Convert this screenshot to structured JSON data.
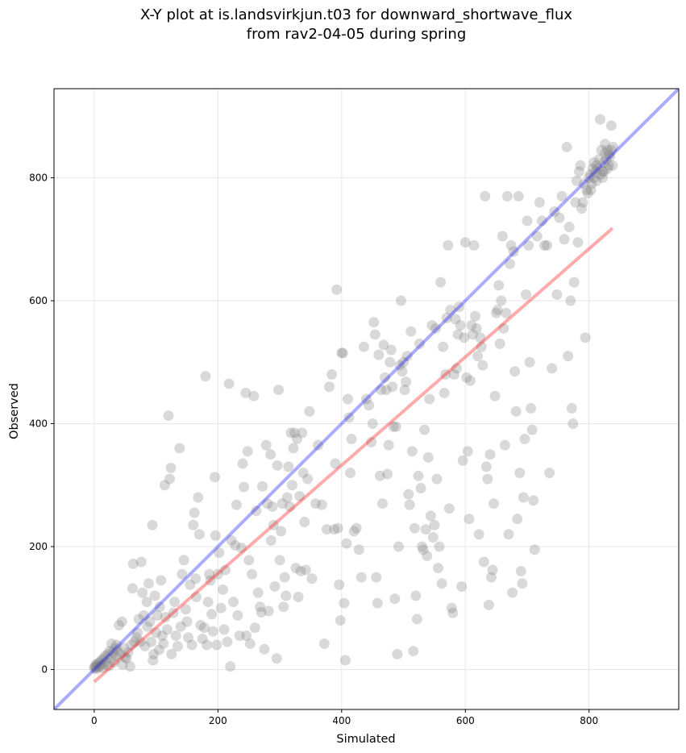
{
  "chart_data": {
    "type": "scatter",
    "title_line1": "X-Y plot at is.landsvirkjun.t03 for downward_shortwave_flux",
    "title_line2": "from rav2-04-05 during spring",
    "xlabel": "Simulated",
    "ylabel": "Observed",
    "xlim": [
      -65,
      945
    ],
    "ylim": [
      -65,
      945
    ],
    "xticks": [
      0,
      200,
      400,
      600,
      800
    ],
    "yticks": [
      0,
      200,
      400,
      600,
      800
    ],
    "grid": true,
    "point_color": "#808080",
    "identity_line_color": "#0000ff",
    "fit_line_color": "#ff0000",
    "identity_line": [
      [
        -65,
        -65
      ],
      [
        945,
        945
      ]
    ],
    "fit_line": [
      [
        0,
        -20
      ],
      [
        838,
        718
      ]
    ],
    "points": [
      [
        0,
        2
      ],
      [
        1,
        5
      ],
      [
        2,
        3
      ],
      [
        3,
        8
      ],
      [
        4,
        1
      ],
      [
        5,
        6
      ],
      [
        6,
        10
      ],
      [
        8,
        4
      ],
      [
        9,
        12
      ],
      [
        10,
        7
      ],
      [
        12,
        15
      ],
      [
        14,
        3
      ],
      [
        15,
        18
      ],
      [
        16,
        9
      ],
      [
        18,
        22
      ],
      [
        20,
        12
      ],
      [
        22,
        25
      ],
      [
        24,
        6
      ],
      [
        25,
        30
      ],
      [
        27,
        18
      ],
      [
        28,
        42
      ],
      [
        30,
        28
      ],
      [
        32,
        12
      ],
      [
        34,
        35
      ],
      [
        35,
        22
      ],
      [
        36,
        40
      ],
      [
        38,
        30
      ],
      [
        40,
        72
      ],
      [
        42,
        25
      ],
      [
        45,
        78
      ],
      [
        46,
        8
      ],
      [
        48,
        35
      ],
      [
        50,
        20
      ],
      [
        52,
        18
      ],
      [
        55,
        28
      ],
      [
        58,
        5
      ],
      [
        60,
        40
      ],
      [
        62,
        132
      ],
      [
        63,
        172
      ],
      [
        65,
        45
      ],
      [
        68,
        52
      ],
      [
        70,
        60
      ],
      [
        72,
        82
      ],
      [
        75,
        45
      ],
      [
        76,
        175
      ],
      [
        78,
        125
      ],
      [
        80,
        88
      ],
      [
        82,
        38
      ],
      [
        85,
        110
      ],
      [
        86,
        70
      ],
      [
        88,
        140
      ],
      [
        90,
        78
      ],
      [
        92,
        45
      ],
      [
        94,
        235
      ],
      [
        95,
        15
      ],
      [
        96,
        25
      ],
      [
        98,
        120
      ],
      [
        100,
        60
      ],
      [
        102,
        88
      ],
      [
        105,
        32
      ],
      [
        106,
        102
      ],
      [
        108,
        145
      ],
      [
        110,
        55
      ],
      [
        112,
        42
      ],
      [
        114,
        300
      ],
      [
        115,
        85
      ],
      [
        118,
        65
      ],
      [
        120,
        413
      ],
      [
        122,
        310
      ],
      [
        124,
        328
      ],
      [
        125,
        25
      ],
      [
        128,
        92
      ],
      [
        130,
        110
      ],
      [
        132,
        55
      ],
      [
        135,
        38
      ],
      [
        138,
        360
      ],
      [
        140,
        70
      ],
      [
        142,
        155
      ],
      [
        145,
        178
      ],
      [
        148,
        98
      ],
      [
        150,
        78
      ],
      [
        152,
        52
      ],
      [
        155,
        138
      ],
      [
        158,
        40
      ],
      [
        160,
        235
      ],
      [
        162,
        255
      ],
      [
        164,
        148
      ],
      [
        165,
        118
      ],
      [
        168,
        280
      ],
      [
        170,
        220
      ],
      [
        172,
        72
      ],
      [
        175,
        50
      ],
      [
        178,
        68
      ],
      [
        180,
        477
      ],
      [
        182,
        40
      ],
      [
        184,
        110
      ],
      [
        186,
        155
      ],
      [
        188,
        145
      ],
      [
        190,
        90
      ],
      [
        192,
        62
      ],
      [
        195,
        313
      ],
      [
        196,
        218
      ],
      [
        198,
        40
      ],
      [
        200,
        155
      ],
      [
        202,
        190
      ],
      [
        205,
        100
      ],
      [
        208,
        130
      ],
      [
        210,
        65
      ],
      [
        212,
        162
      ],
      [
        215,
        45
      ],
      [
        218,
        465
      ],
      [
        220,
        5
      ],
      [
        222,
        210
      ],
      [
        225,
        110
      ],
      [
        228,
        202
      ],
      [
        230,
        268
      ],
      [
        232,
        88
      ],
      [
        235,
        55
      ],
      [
        238,
        198
      ],
      [
        240,
        335
      ],
      [
        242,
        297
      ],
      [
        245,
        450
      ],
      [
        246,
        55
      ],
      [
        248,
        355
      ],
      [
        250,
        178
      ],
      [
        252,
        42
      ],
      [
        255,
        155
      ],
      [
        258,
        445
      ],
      [
        260,
        68
      ],
      [
        262,
        258
      ],
      [
        265,
        125
      ],
      [
        268,
        102
      ],
      [
        270,
        93
      ],
      [
        272,
        298
      ],
      [
        275,
        33
      ],
      [
        278,
        365
      ],
      [
        280,
        270
      ],
      [
        282,
        95
      ],
      [
        285,
        350
      ],
      [
        286,
        210
      ],
      [
        288,
        265
      ],
      [
        290,
        235
      ],
      [
        292,
        135
      ],
      [
        295,
        18
      ],
      [
        296,
        332
      ],
      [
        298,
        455
      ],
      [
        300,
        178
      ],
      [
        302,
        225
      ],
      [
        304,
        270
      ],
      [
        306,
        102
      ],
      [
        308,
        150
      ],
      [
        310,
        120
      ],
      [
        312,
        280
      ],
      [
        314,
        330
      ],
      [
        316,
        265
      ],
      [
        318,
        385
      ],
      [
        320,
        300
      ],
      [
        322,
        360
      ],
      [
        324,
        385
      ],
      [
        326,
        165
      ],
      [
        328,
        375
      ],
      [
        330,
        118
      ],
      [
        332,
        282
      ],
      [
        334,
        160
      ],
      [
        336,
        385
      ],
      [
        338,
        320
      ],
      [
        340,
        240
      ],
      [
        342,
        162
      ],
      [
        345,
        310
      ],
      [
        348,
        420
      ],
      [
        352,
        148
      ],
      [
        358,
        270
      ],
      [
        362,
        365
      ],
      [
        368,
        268
      ],
      [
        372,
        42
      ],
      [
        376,
        228
      ],
      [
        380,
        460
      ],
      [
        384,
        480
      ],
      [
        388,
        228
      ],
      [
        390,
        335
      ],
      [
        392,
        618
      ],
      [
        394,
        230
      ],
      [
        396,
        138
      ],
      [
        398,
        80
      ],
      [
        400,
        515
      ],
      [
        402,
        515
      ],
      [
        404,
        108
      ],
      [
        406,
        15
      ],
      [
        408,
        205
      ],
      [
        410,
        440
      ],
      [
        412,
        410
      ],
      [
        414,
        320
      ],
      [
        416,
        375
      ],
      [
        420,
        225
      ],
      [
        424,
        230
      ],
      [
        428,
        195
      ],
      [
        432,
        150
      ],
      [
        436,
        525
      ],
      [
        440,
        440
      ],
      [
        444,
        430
      ],
      [
        448,
        370
      ],
      [
        450,
        400
      ],
      [
        452,
        565
      ],
      [
        454,
        545
      ],
      [
        456,
        150
      ],
      [
        458,
        108
      ],
      [
        460,
        512
      ],
      [
        462,
        315
      ],
      [
        464,
        455
      ],
      [
        466,
        270
      ],
      [
        468,
        528
      ],
      [
        470,
        475
      ],
      [
        472,
        455
      ],
      [
        474,
        318
      ],
      [
        476,
        365
      ],
      [
        478,
        500
      ],
      [
        480,
        520
      ],
      [
        482,
        460
      ],
      [
        484,
        395
      ],
      [
        486,
        115
      ],
      [
        488,
        395
      ],
      [
        490,
        25
      ],
      [
        492,
        200
      ],
      [
        494,
        495
      ],
      [
        496,
        600
      ],
      [
        498,
        485
      ],
      [
        500,
        500
      ],
      [
        502,
        455
      ],
      [
        504,
        468
      ],
      [
        506,
        510
      ],
      [
        508,
        285
      ],
      [
        510,
        268
      ],
      [
        512,
        550
      ],
      [
        514,
        355
      ],
      [
        516,
        30
      ],
      [
        518,
        230
      ],
      [
        520,
        120
      ],
      [
        522,
        82
      ],
      [
        524,
        315
      ],
      [
        526,
        530
      ],
      [
        528,
        295
      ],
      [
        530,
        200
      ],
      [
        532,
        195
      ],
      [
        534,
        390
      ],
      [
        536,
        228
      ],
      [
        538,
        185
      ],
      [
        540,
        345
      ],
      [
        542,
        440
      ],
      [
        544,
        250
      ],
      [
        546,
        560
      ],
      [
        548,
        215
      ],
      [
        550,
        235
      ],
      [
        552,
        555
      ],
      [
        554,
        310
      ],
      [
        556,
        165
      ],
      [
        558,
        200
      ],
      [
        560,
        630
      ],
      [
        562,
        140
      ],
      [
        564,
        525
      ],
      [
        566,
        450
      ],
      [
        568,
        480
      ],
      [
        570,
        572
      ],
      [
        572,
        690
      ],
      [
        574,
        262
      ],
      [
        576,
        585
      ],
      [
        578,
        100
      ],
      [
        580,
        92
      ],
      [
        582,
        480
      ],
      [
        584,
        570
      ],
      [
        586,
        490
      ],
      [
        588,
        545
      ],
      [
        590,
        590
      ],
      [
        592,
        560
      ],
      [
        594,
        135
      ],
      [
        596,
        340
      ],
      [
        598,
        540
      ],
      [
        600,
        695
      ],
      [
        602,
        475
      ],
      [
        604,
        355
      ],
      [
        606,
        245
      ],
      [
        608,
        470
      ],
      [
        610,
        560
      ],
      [
        612,
        545
      ],
      [
        614,
        690
      ],
      [
        616,
        575
      ],
      [
        618,
        555
      ],
      [
        620,
        510
      ],
      [
        622,
        220
      ],
      [
        624,
        540
      ],
      [
        626,
        525
      ],
      [
        628,
        495
      ],
      [
        630,
        175
      ],
      [
        632,
        770
      ],
      [
        634,
        330
      ],
      [
        636,
        310
      ],
      [
        638,
        105
      ],
      [
        640,
        350
      ],
      [
        642,
        150
      ],
      [
        644,
        162
      ],
      [
        646,
        270
      ],
      [
        648,
        445
      ],
      [
        650,
        580
      ],
      [
        652,
        585
      ],
      [
        654,
        625
      ],
      [
        656,
        530
      ],
      [
        658,
        600
      ],
      [
        660,
        705
      ],
      [
        662,
        555
      ],
      [
        664,
        365
      ],
      [
        666,
        580
      ],
      [
        668,
        770
      ],
      [
        670,
        220
      ],
      [
        672,
        660
      ],
      [
        674,
        690
      ],
      [
        676,
        125
      ],
      [
        678,
        680
      ],
      [
        680,
        485
      ],
      [
        682,
        420
      ],
      [
        684,
        245
      ],
      [
        686,
        770
      ],
      [
        688,
        320
      ],
      [
        690,
        160
      ],
      [
        692,
        140
      ],
      [
        694,
        280
      ],
      [
        696,
        375
      ],
      [
        698,
        610
      ],
      [
        700,
        730
      ],
      [
        702,
        690
      ],
      [
        704,
        500
      ],
      [
        706,
        425
      ],
      [
        708,
        390
      ],
      [
        710,
        275
      ],
      [
        712,
        195
      ],
      [
        716,
        705
      ],
      [
        720,
        760
      ],
      [
        724,
        730
      ],
      [
        728,
        690
      ],
      [
        732,
        690
      ],
      [
        736,
        320
      ],
      [
        740,
        490
      ],
      [
        744,
        745
      ],
      [
        748,
        610
      ],
      [
        752,
        735
      ],
      [
        756,
        770
      ],
      [
        760,
        700
      ],
      [
        764,
        850
      ],
      [
        766,
        510
      ],
      [
        768,
        720
      ],
      [
        770,
        600
      ],
      [
        772,
        425
      ],
      [
        774,
        400
      ],
      [
        776,
        630
      ],
      [
        778,
        760
      ],
      [
        780,
        795
      ],
      [
        782,
        695
      ],
      [
        784,
        810
      ],
      [
        786,
        820
      ],
      [
        788,
        750
      ],
      [
        790,
        760
      ],
      [
        792,
        790
      ],
      [
        794,
        540
      ],
      [
        796,
        780
      ],
      [
        798,
        775
      ],
      [
        800,
        800
      ],
      [
        802,
        805
      ],
      [
        804,
        790
      ],
      [
        806,
        815
      ],
      [
        808,
        800
      ],
      [
        810,
        810
      ],
      [
        812,
        820
      ],
      [
        814,
        815
      ],
      [
        816,
        830
      ],
      [
        818,
        895
      ],
      [
        820,
        845
      ],
      [
        822,
        810
      ],
      [
        824,
        825
      ],
      [
        826,
        840
      ],
      [
        828,
        830
      ],
      [
        830,
        845
      ],
      [
        832,
        820
      ],
      [
        834,
        835
      ],
      [
        836,
        845
      ],
      [
        838,
        820
      ],
      [
        839,
        850
      ],
      [
        836,
        885
      ],
      [
        826,
        855
      ],
      [
        818,
        805
      ],
      [
        812,
        795
      ],
      [
        824,
        810
      ],
      [
        830,
        815
      ],
      [
        832,
        838
      ],
      [
        803,
        780
      ],
      [
        808,
        825
      ],
      [
        822,
        800
      ]
    ]
  }
}
